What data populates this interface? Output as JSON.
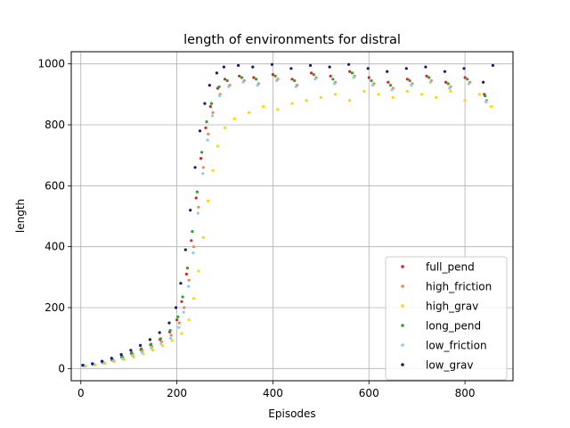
{
  "chart_data": {
    "type": "scatter",
    "title": "length of environments for distral",
    "xlabel": "Episodes",
    "ylabel": "length",
    "xlim": [
      -20,
      900
    ],
    "ylim": [
      -40,
      1040
    ],
    "x_ticks": [
      0,
      200,
      400,
      600,
      800
    ],
    "y_ticks": [
      0,
      200,
      400,
      600,
      800,
      1000
    ],
    "grid": true,
    "legend_position": "lower right",
    "series": [
      {
        "name": "full_pend",
        "color": "#d62728",
        "points": [
          [
            5,
            10
          ],
          [
            25,
            14
          ],
          [
            45,
            20
          ],
          [
            65,
            28
          ],
          [
            85,
            38
          ],
          [
            105,
            50
          ],
          [
            125,
            62
          ],
          [
            145,
            78
          ],
          [
            165,
            95
          ],
          [
            185,
            120
          ],
          [
            200,
            160
          ],
          [
            210,
            220
          ],
          [
            220,
            310
          ],
          [
            230,
            420
          ],
          [
            240,
            560
          ],
          [
            250,
            690
          ],
          [
            260,
            790
          ],
          [
            270,
            860
          ],
          [
            285,
            920
          ],
          [
            300,
            950
          ],
          [
            330,
            960
          ],
          [
            360,
            955
          ],
          [
            400,
            965
          ],
          [
            440,
            950
          ],
          [
            480,
            970
          ],
          [
            520,
            960
          ],
          [
            560,
            975
          ],
          [
            600,
            955
          ],
          [
            640,
            940
          ],
          [
            680,
            950
          ],
          [
            720,
            960
          ],
          [
            760,
            940
          ],
          [
            800,
            955
          ],
          [
            840,
            900
          ]
        ]
      },
      {
        "name": "high_friction",
        "color": "#ff7f50",
        "points": [
          [
            8,
            9
          ],
          [
            28,
            13
          ],
          [
            48,
            19
          ],
          [
            68,
            26
          ],
          [
            88,
            35
          ],
          [
            108,
            46
          ],
          [
            128,
            58
          ],
          [
            148,
            72
          ],
          [
            168,
            88
          ],
          [
            188,
            110
          ],
          [
            205,
            150
          ],
          [
            215,
            200
          ],
          [
            225,
            290
          ],
          [
            235,
            400
          ],
          [
            245,
            530
          ],
          [
            255,
            660
          ],
          [
            265,
            770
          ],
          [
            275,
            840
          ],
          [
            290,
            900
          ],
          [
            310,
            930
          ],
          [
            340,
            945
          ],
          [
            370,
            935
          ],
          [
            410,
            950
          ],
          [
            450,
            930
          ],
          [
            490,
            955
          ],
          [
            530,
            940
          ],
          [
            570,
            960
          ],
          [
            610,
            935
          ],
          [
            650,
            920
          ],
          [
            690,
            935
          ],
          [
            730,
            945
          ],
          [
            770,
            925
          ],
          [
            810,
            940
          ],
          [
            845,
            880
          ]
        ]
      },
      {
        "name": "high_grav",
        "color": "#ffd700",
        "points": [
          [
            10,
            8
          ],
          [
            30,
            12
          ],
          [
            50,
            17
          ],
          [
            70,
            23
          ],
          [
            90,
            30
          ],
          [
            110,
            38
          ],
          [
            130,
            48
          ],
          [
            150,
            60
          ],
          [
            170,
            75
          ],
          [
            190,
            92
          ],
          [
            210,
            115
          ],
          [
            225,
            160
          ],
          [
            235,
            230
          ],
          [
            245,
            320
          ],
          [
            255,
            430
          ],
          [
            265,
            550
          ],
          [
            275,
            650
          ],
          [
            285,
            730
          ],
          [
            300,
            790
          ],
          [
            320,
            820
          ],
          [
            350,
            840
          ],
          [
            380,
            860
          ],
          [
            410,
            850
          ],
          [
            440,
            870
          ],
          [
            470,
            880
          ],
          [
            500,
            890
          ],
          [
            530,
            900
          ],
          [
            560,
            880
          ],
          [
            590,
            910
          ],
          [
            620,
            900
          ],
          [
            650,
            890
          ],
          [
            680,
            910
          ],
          [
            710,
            900
          ],
          [
            740,
            890
          ],
          [
            770,
            910
          ],
          [
            800,
            880
          ],
          [
            830,
            900
          ],
          [
            855,
            860
          ]
        ]
      },
      {
        "name": "long_pend",
        "color": "#2ca02c",
        "points": [
          [
            6,
            10
          ],
          [
            26,
            14
          ],
          [
            46,
            21
          ],
          [
            66,
            29
          ],
          [
            86,
            40
          ],
          [
            106,
            52
          ],
          [
            126,
            65
          ],
          [
            146,
            80
          ],
          [
            166,
            98
          ],
          [
            186,
            125
          ],
          [
            202,
            170
          ],
          [
            212,
            235
          ],
          [
            222,
            330
          ],
          [
            232,
            450
          ],
          [
            242,
            580
          ],
          [
            252,
            710
          ],
          [
            262,
            810
          ],
          [
            272,
            870
          ],
          [
            288,
            925
          ],
          [
            305,
            945
          ],
          [
            335,
            955
          ],
          [
            365,
            950
          ],
          [
            405,
            960
          ],
          [
            445,
            945
          ],
          [
            485,
            965
          ],
          [
            525,
            950
          ],
          [
            565,
            970
          ],
          [
            605,
            945
          ],
          [
            645,
            930
          ],
          [
            685,
            945
          ],
          [
            725,
            955
          ],
          [
            765,
            935
          ],
          [
            805,
            950
          ],
          [
            842,
            895
          ]
        ]
      },
      {
        "name": "low_friction",
        "color": "#87ceeb",
        "points": [
          [
            7,
            9
          ],
          [
            27,
            13
          ],
          [
            47,
            18
          ],
          [
            67,
            25
          ],
          [
            87,
            33
          ],
          [
            107,
            43
          ],
          [
            127,
            54
          ],
          [
            147,
            67
          ],
          [
            167,
            82
          ],
          [
            187,
            100
          ],
          [
            204,
            135
          ],
          [
            214,
            185
          ],
          [
            224,
            270
          ],
          [
            234,
            380
          ],
          [
            244,
            510
          ],
          [
            254,
            640
          ],
          [
            264,
            750
          ],
          [
            274,
            830
          ],
          [
            289,
            895
          ],
          [
            308,
            925
          ],
          [
            338,
            940
          ],
          [
            368,
            930
          ],
          [
            408,
            945
          ],
          [
            448,
            925
          ],
          [
            488,
            950
          ],
          [
            528,
            935
          ],
          [
            568,
            955
          ],
          [
            608,
            930
          ],
          [
            648,
            915
          ],
          [
            688,
            930
          ],
          [
            728,
            940
          ],
          [
            768,
            920
          ],
          [
            808,
            935
          ],
          [
            844,
            875
          ]
        ]
      },
      {
        "name": "low_grav",
        "color": "#191970",
        "points": [
          [
            4,
            11
          ],
          [
            24,
            16
          ],
          [
            44,
            24
          ],
          [
            64,
            34
          ],
          [
            84,
            46
          ],
          [
            104,
            60
          ],
          [
            124,
            76
          ],
          [
            144,
            95
          ],
          [
            164,
            118
          ],
          [
            184,
            150
          ],
          [
            198,
            200
          ],
          [
            208,
            280
          ],
          [
            218,
            390
          ],
          [
            228,
            520
          ],
          [
            238,
            660
          ],
          [
            248,
            780
          ],
          [
            258,
            870
          ],
          [
            268,
            930
          ],
          [
            283,
            970
          ],
          [
            298,
            990
          ],
          [
            328,
            995
          ],
          [
            358,
            990
          ],
          [
            398,
            998
          ],
          [
            438,
            985
          ],
          [
            478,
            995
          ],
          [
            518,
            990
          ],
          [
            558,
            998
          ],
          [
            598,
            985
          ],
          [
            638,
            975
          ],
          [
            678,
            985
          ],
          [
            718,
            990
          ],
          [
            758,
            975
          ],
          [
            798,
            985
          ],
          [
            838,
            940
          ],
          [
            858,
            995
          ]
        ]
      }
    ]
  }
}
